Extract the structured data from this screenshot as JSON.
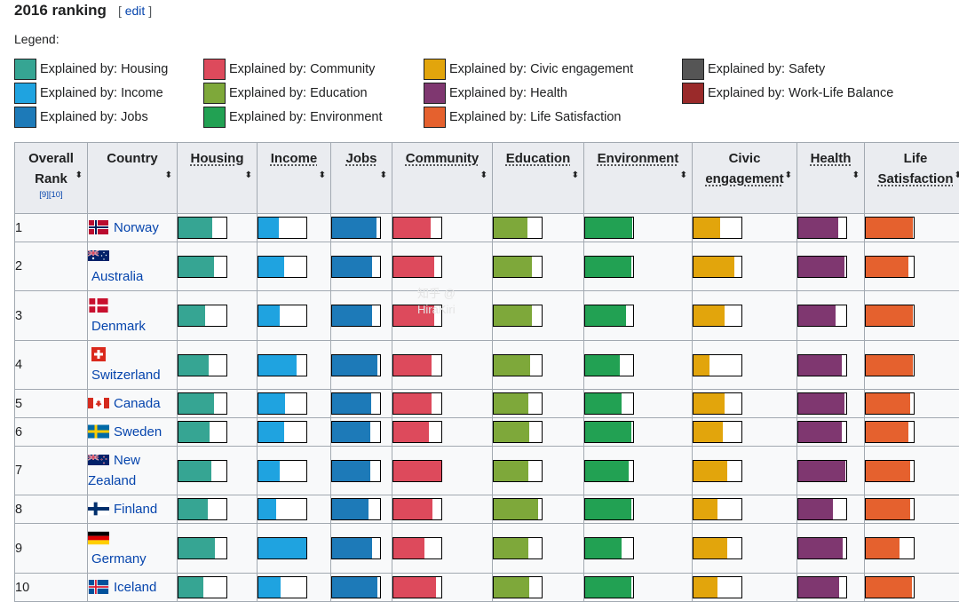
{
  "heading": {
    "title": "2016 ranking",
    "edit_open": "[ ",
    "edit": "edit",
    "edit_close": " ]"
  },
  "legend": {
    "label": "Legend:",
    "items": [
      {
        "label": "Explained by: Housing",
        "color": "#36a593"
      },
      {
        "label": "Explained by: Income",
        "color": "#1fa3e0"
      },
      {
        "label": "Explained by: Jobs",
        "color": "#1d7ab8"
      },
      {
        "label": "Explained by: Community",
        "color": "#dd4a5c"
      },
      {
        "label": "Explained by: Education",
        "color": "#7ea83a"
      },
      {
        "label": "Explained by: Environment",
        "color": "#22a153"
      },
      {
        "label": "Explained by: Civic engagement",
        "color": "#e2a50c"
      },
      {
        "label": "Explained by: Health",
        "color": "#7f3770"
      },
      {
        "label": "Explained by: Life Satisfaction",
        "color": "#e5612e"
      },
      {
        "label": "Explained by: Safety",
        "color": "#555555"
      },
      {
        "label": "Explained by: Work-Life Balance",
        "color": "#9a2a2a"
      }
    ]
  },
  "table": {
    "headers": {
      "rank_line1": "Overall",
      "rank_line2": "Rank",
      "rank_refs": "[9][10]",
      "country": "Country",
      "housing": "Housing",
      "income": "Income",
      "jobs": "Jobs",
      "community": "Community",
      "education": "Education",
      "environment": "Environment",
      "civic_line1": "Civic",
      "civic_line2": "engagement",
      "health": "Health",
      "life_line1": "Life",
      "life_line2": "Satisfaction"
    },
    "sort_icon": "⬍",
    "rows": [
      {
        "rank": "1",
        "country": "Norway",
        "flag": "norway",
        "country_lines": [
          "Norway"
        ],
        "scores": {
          "housing": 0.71,
          "income": 0.43,
          "jobs": 0.93,
          "community": 0.77,
          "education": 0.71,
          "environment": 0.99,
          "civic": 0.55,
          "health": 0.83,
          "life": 0.99
        }
      },
      {
        "rank": "2",
        "country": "Australia",
        "flag": "australia",
        "country_lines": [
          "Australia"
        ],
        "scores": {
          "housing": 0.74,
          "income": 0.54,
          "jobs": 0.83,
          "community": 0.85,
          "education": 0.8,
          "environment": 0.96,
          "civic": 0.85,
          "health": 0.96,
          "life": 0.88
        }
      },
      {
        "rank": "3",
        "country": "Denmark",
        "flag": "denmark",
        "country_lines": [
          "Denmark"
        ],
        "scores": {
          "housing": 0.56,
          "income": 0.44,
          "jobs": 0.83,
          "community": 0.85,
          "education": 0.8,
          "environment": 0.85,
          "civic": 0.65,
          "health": 0.78,
          "life": 0.98
        }
      },
      {
        "rank": "4",
        "country": "Switzerland",
        "flag": "switzerland",
        "country_lines": [
          "Switzerland"
        ],
        "scores": {
          "housing": 0.63,
          "income": 0.8,
          "jobs": 0.94,
          "community": 0.8,
          "education": 0.76,
          "environment": 0.73,
          "civic": 0.33,
          "health": 0.91,
          "life": 0.99
        }
      },
      {
        "rank": "5",
        "country": "Canada",
        "flag": "canada",
        "country_lines": [
          "Canada"
        ],
        "scores": {
          "housing": 0.74,
          "income": 0.56,
          "jobs": 0.82,
          "community": 0.8,
          "education": 0.73,
          "environment": 0.76,
          "civic": 0.65,
          "health": 0.97,
          "life": 0.93
        }
      },
      {
        "rank": "6",
        "country": "Sweden",
        "flag": "sweden",
        "country_lines": [
          "Sweden"
        ],
        "scores": {
          "housing": 0.64,
          "income": 0.53,
          "jobs": 0.79,
          "community": 0.74,
          "education": 0.74,
          "environment": 0.96,
          "civic": 0.62,
          "health": 0.91,
          "life": 0.88
        }
      },
      {
        "rank": "7",
        "country": "New Zealand",
        "flag": "new-zealand",
        "country_lines": [
          "New",
          "Zealand"
        ],
        "scores": {
          "housing": 0.68,
          "income": 0.45,
          "jobs": 0.8,
          "community": 1.0,
          "education": 0.72,
          "environment": 0.9,
          "civic": 0.7,
          "health": 0.98,
          "life": 0.92
        }
      },
      {
        "rank": "8",
        "country": "Finland",
        "flag": "finland",
        "country_lines": [
          "Finland"
        ],
        "scores": {
          "housing": 0.62,
          "income": 0.37,
          "jobs": 0.75,
          "community": 0.82,
          "education": 0.92,
          "environment": 0.96,
          "civic": 0.5,
          "health": 0.72,
          "life": 0.93
        }
      },
      {
        "rank": "9",
        "country": "Germany",
        "flag": "germany",
        "country_lines": [
          "Germany"
        ],
        "scores": {
          "housing": 0.75,
          "income": 1.0,
          "jobs": 0.83,
          "community": 0.65,
          "education": 0.73,
          "environment": 0.75,
          "civic": 0.7,
          "health": 0.92,
          "life": 0.7
        }
      },
      {
        "rank": "10",
        "country": "Iceland",
        "flag": "iceland",
        "country_lines": [
          "Iceland"
        ],
        "scores": {
          "housing": 0.52,
          "income": 0.47,
          "jobs": 0.95,
          "community": 0.88,
          "education": 0.74,
          "environment": 0.96,
          "civic": 0.5,
          "health": 0.86,
          "life": 0.96
        }
      }
    ]
  },
  "watermark": {
    "line1": "知乎 @",
    "line2": "HiraKiri"
  }
}
